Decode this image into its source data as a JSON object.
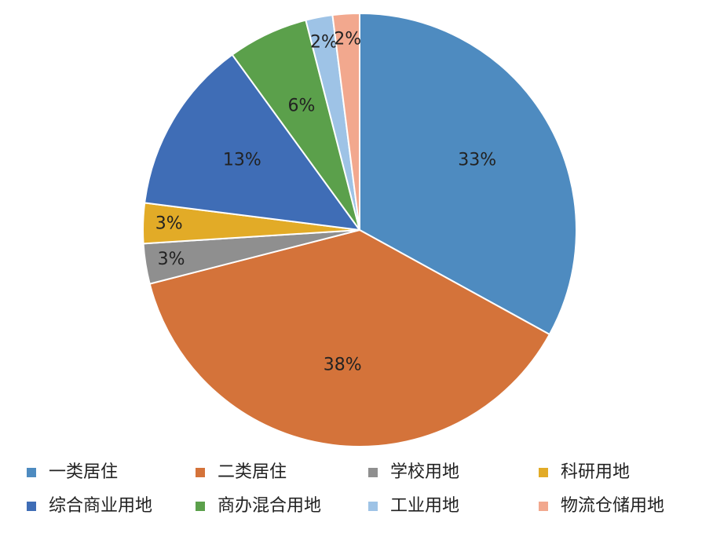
{
  "chart_data": {
    "type": "pie",
    "categories": [
      "一类居住",
      "二类居住",
      "学校用地",
      "科研用地",
      "综合商业用地",
      "商办混合用地",
      "工业用地",
      "物流仓储用地"
    ],
    "values": [
      33,
      38,
      3,
      3,
      13,
      6,
      2,
      2
    ],
    "value_labels": [
      "33%",
      "38%",
      "3%",
      "3%",
      "13%",
      "6%",
      "2%",
      "2%"
    ],
    "colors": [
      "#4e8bc0",
      "#d4733a",
      "#8f8f8f",
      "#e2ab27",
      "#3f6db6",
      "#5ba04b",
      "#9ec3e6",
      "#f2a88e"
    ],
    "legend": "bottom"
  }
}
